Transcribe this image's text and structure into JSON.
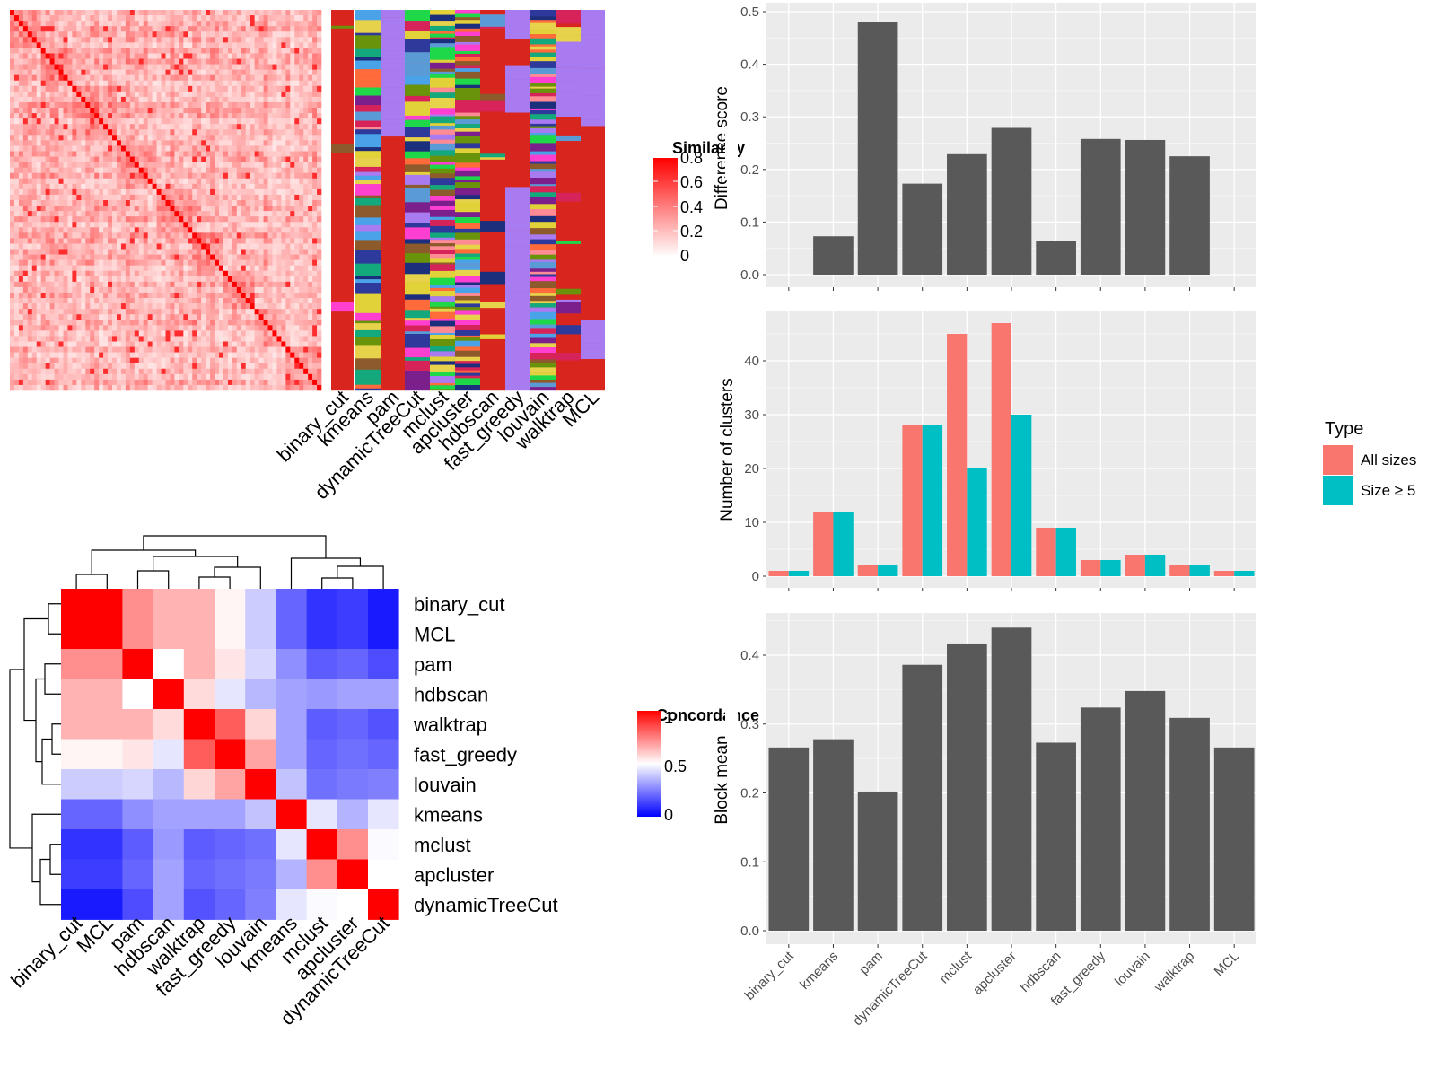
{
  "methods": [
    "binary_cut",
    "kmeans",
    "pam",
    "dynamicTreeCut",
    "mclust",
    "apcluster",
    "hdbscan",
    "fast_greedy",
    "louvain",
    "walktrap",
    "MCL"
  ],
  "similarity_legend": {
    "title": "Similarity",
    "ticks": [
      "0.8",
      "0.6",
      "0.4",
      "0.2",
      "0"
    ]
  },
  "concordance_legend": {
    "title": "Concordance",
    "ticks": [
      "1",
      "0.5",
      "0"
    ]
  },
  "concordance_order": [
    "binary_cut",
    "MCL",
    "pam",
    "hdbscan",
    "walktrap",
    "fast_greedy",
    "louvain",
    "kmeans",
    "mclust",
    "apcluster",
    "dynamicTreeCut"
  ],
  "concordance_matrix": [
    [
      1.0,
      1.0,
      0.72,
      0.65,
      0.65,
      0.52,
      0.4,
      0.2,
      0.1,
      0.12,
      0.05
    ],
    [
      1.0,
      1.0,
      0.72,
      0.65,
      0.65,
      0.52,
      0.4,
      0.2,
      0.1,
      0.12,
      0.05
    ],
    [
      0.72,
      0.72,
      1.0,
      0.5,
      0.65,
      0.55,
      0.42,
      0.28,
      0.18,
      0.2,
      0.15
    ],
    [
      0.65,
      0.65,
      0.5,
      1.0,
      0.57,
      0.45,
      0.36,
      0.32,
      0.3,
      0.32,
      0.32
    ],
    [
      0.65,
      0.65,
      0.65,
      0.57,
      1.0,
      0.82,
      0.58,
      0.32,
      0.18,
      0.2,
      0.16
    ],
    [
      0.52,
      0.52,
      0.55,
      0.45,
      0.82,
      1.0,
      0.68,
      0.32,
      0.2,
      0.22,
      0.2
    ],
    [
      0.4,
      0.4,
      0.42,
      0.36,
      0.58,
      0.68,
      1.0,
      0.38,
      0.22,
      0.24,
      0.25
    ],
    [
      0.2,
      0.2,
      0.28,
      0.32,
      0.32,
      0.32,
      0.38,
      1.0,
      0.45,
      0.35,
      0.45
    ],
    [
      0.1,
      0.1,
      0.18,
      0.3,
      0.18,
      0.2,
      0.22,
      0.45,
      1.0,
      0.72,
      0.49
    ],
    [
      0.12,
      0.12,
      0.2,
      0.32,
      0.2,
      0.22,
      0.24,
      0.35,
      0.72,
      1.0,
      0.5
    ],
    [
      0.05,
      0.05,
      0.15,
      0.32,
      0.16,
      0.2,
      0.25,
      0.45,
      0.49,
      0.5,
      1.0
    ]
  ],
  "chart_data": [
    {
      "type": "bar",
      "categories": [
        "binary_cut",
        "kmeans",
        "pam",
        "dynamicTreeCut",
        "mclust",
        "apcluster",
        "hdbscan",
        "fast_greedy",
        "louvain",
        "walktrap",
        "MCL"
      ],
      "values": [
        0,
        0.073,
        0.48,
        0.173,
        0.229,
        0.279,
        0.064,
        0.258,
        0.256,
        0.225,
        0
      ],
      "xlabel": "",
      "ylabel": "Difference score",
      "ylim": [
        0,
        0.5
      ],
      "yticks": [
        "0.0",
        "0.1",
        "0.2",
        "0.3",
        "0.4",
        "0.5"
      ],
      "color": "#595959",
      "grid": true
    },
    {
      "type": "bar",
      "categories": [
        "binary_cut",
        "kmeans",
        "pam",
        "dynamicTreeCut",
        "mclust",
        "apcluster",
        "hdbscan",
        "fast_greedy",
        "louvain",
        "walktrap",
        "MCL"
      ],
      "series": [
        {
          "name": "All sizes",
          "color": "#F8766D",
          "values": [
            1,
            12,
            2,
            28,
            45,
            47,
            9,
            3,
            4,
            2,
            1
          ]
        },
        {
          "name": "Size ≥ 5",
          "color": "#00BFC4",
          "values": [
            1,
            12,
            2,
            28,
            20,
            30,
            9,
            3,
            4,
            2,
            1
          ]
        }
      ],
      "xlabel": "",
      "ylabel": "Number of clusters",
      "ylim": [
        0,
        50
      ],
      "yticks": [
        "0",
        "10",
        "20",
        "30",
        "40"
      ],
      "legend": {
        "title": "Type",
        "position": "right"
      },
      "grid": true
    },
    {
      "type": "bar",
      "categories": [
        "binary_cut",
        "kmeans",
        "pam",
        "dynamicTreeCut",
        "mclust",
        "apcluster",
        "hdbscan",
        "fast_greedy",
        "louvain",
        "walktrap",
        "MCL"
      ],
      "values": [
        0.266,
        0.278,
        0.202,
        0.386,
        0.417,
        0.44,
        0.273,
        0.324,
        0.348,
        0.309,
        0.266
      ],
      "xlabel": "",
      "ylabel": "Block mean",
      "ylim": [
        0,
        0.47
      ],
      "yticks": [
        "0.0",
        "0.1",
        "0.2",
        "0.3",
        "0.4"
      ],
      "color": "#595959",
      "grid": true
    }
  ]
}
